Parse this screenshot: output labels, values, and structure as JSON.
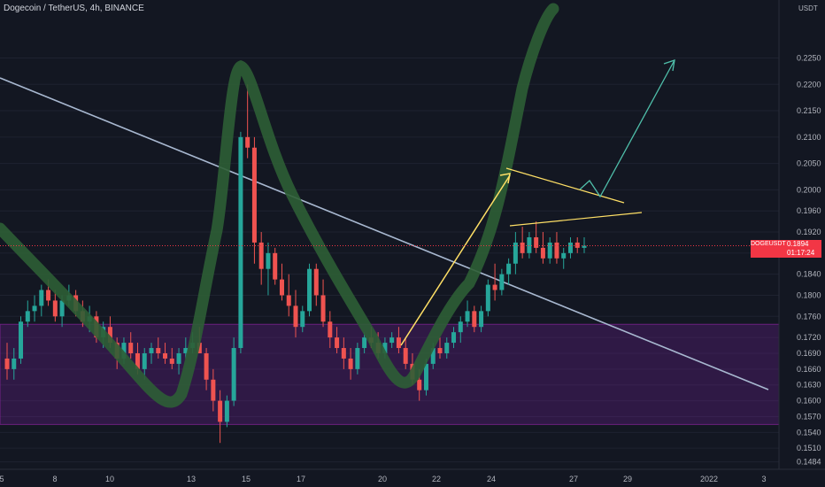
{
  "window": {
    "title": "Dogecoin / TetherUS, 4h, BINANCE",
    "currency_label": "USDT",
    "symbol_tag": "DOGEUSDT",
    "last_price": "0.1894",
    "countdown": "01:17:24"
  },
  "colors": {
    "background": "#131722",
    "up": "#26a69a",
    "down": "#ef5350",
    "zone": "#7b1fa2",
    "trend_green": "#2e5e35",
    "diag_line": "#a8b8d0",
    "yellow": "#ffe066",
    "teal_arrow": "#4fbfaa",
    "price_tag": "#f23645"
  },
  "chart_data": {
    "type": "candlestick",
    "title": "Dogecoin / TetherUS, 4h, BINANCE",
    "ylim": [
      0.147,
      0.236
    ],
    "y_ticks": [
      "0.2250",
      "0.2200",
      "0.2150",
      "0.2100",
      "0.2050",
      "0.2000",
      "0.1960",
      "0.1920",
      "0.1880",
      "0.1840",
      "0.1800",
      "0.1760",
      "0.1720",
      "0.1690",
      "0.1660",
      "0.1630",
      "0.1600",
      "0.1570",
      "0.1540",
      "0.1510",
      "0.1484"
    ],
    "x_ticks": [
      "5",
      "8",
      "10",
      "13",
      "15",
      "17",
      "20",
      "22",
      "24",
      "27",
      "29",
      "2022",
      "3"
    ],
    "current_price": 0.1894,
    "support_zone": [
      0.1555,
      0.1745
    ],
    "candles": [
      [
        0.168,
        0.171,
        0.164,
        0.166
      ],
      [
        0.166,
        0.17,
        0.164,
        0.168
      ],
      [
        0.168,
        0.176,
        0.167,
        0.175
      ],
      [
        0.175,
        0.179,
        0.174,
        0.177
      ],
      [
        0.177,
        0.18,
        0.175,
        0.178
      ],
      [
        0.178,
        0.182,
        0.176,
        0.181
      ],
      [
        0.181,
        0.183,
        0.178,
        0.179
      ],
      [
        0.179,
        0.181,
        0.175,
        0.176
      ],
      [
        0.176,
        0.18,
        0.174,
        0.179
      ],
      [
        0.179,
        0.182,
        0.178,
        0.18
      ],
      [
        0.18,
        0.181,
        0.176,
        0.177
      ],
      [
        0.177,
        0.179,
        0.174,
        0.175
      ],
      [
        0.175,
        0.178,
        0.173,
        0.176
      ],
      [
        0.176,
        0.177,
        0.171,
        0.172
      ],
      [
        0.172,
        0.175,
        0.17,
        0.174
      ],
      [
        0.174,
        0.176,
        0.17,
        0.171
      ],
      [
        0.171,
        0.172,
        0.166,
        0.168
      ],
      [
        0.168,
        0.172,
        0.167,
        0.171
      ],
      [
        0.171,
        0.173,
        0.168,
        0.169
      ],
      [
        0.169,
        0.171,
        0.165,
        0.166
      ],
      [
        0.166,
        0.17,
        0.164,
        0.169
      ],
      [
        0.169,
        0.171,
        0.167,
        0.17
      ],
      [
        0.17,
        0.172,
        0.168,
        0.169
      ],
      [
        0.169,
        0.171,
        0.167,
        0.168
      ],
      [
        0.168,
        0.17,
        0.166,
        0.167
      ],
      [
        0.167,
        0.17,
        0.165,
        0.169
      ],
      [
        0.169,
        0.172,
        0.168,
        0.17
      ],
      [
        0.17,
        0.173,
        0.169,
        0.171
      ],
      [
        0.171,
        0.174,
        0.169,
        0.169
      ],
      [
        0.169,
        0.17,
        0.162,
        0.164
      ],
      [
        0.164,
        0.166,
        0.158,
        0.16
      ],
      [
        0.16,
        0.162,
        0.152,
        0.156
      ],
      [
        0.156,
        0.161,
        0.155,
        0.16
      ],
      [
        0.16,
        0.172,
        0.159,
        0.17
      ],
      [
        0.17,
        0.211,
        0.169,
        0.21
      ],
      [
        0.21,
        0.22,
        0.206,
        0.208
      ],
      [
        0.208,
        0.21,
        0.186,
        0.19
      ],
      [
        0.19,
        0.192,
        0.182,
        0.185
      ],
      [
        0.185,
        0.19,
        0.18,
        0.188
      ],
      [
        0.188,
        0.189,
        0.182,
        0.183
      ],
      [
        0.183,
        0.186,
        0.179,
        0.18
      ],
      [
        0.18,
        0.184,
        0.176,
        0.178
      ],
      [
        0.178,
        0.181,
        0.172,
        0.174
      ],
      [
        0.174,
        0.178,
        0.173,
        0.177
      ],
      [
        0.177,
        0.186,
        0.176,
        0.185
      ],
      [
        0.185,
        0.186,
        0.178,
        0.18
      ],
      [
        0.18,
        0.183,
        0.174,
        0.175
      ],
      [
        0.175,
        0.177,
        0.17,
        0.172
      ],
      [
        0.172,
        0.174,
        0.169,
        0.17
      ],
      [
        0.17,
        0.172,
        0.166,
        0.168
      ],
      [
        0.168,
        0.17,
        0.164,
        0.166
      ],
      [
        0.166,
        0.171,
        0.165,
        0.17
      ],
      [
        0.17,
        0.173,
        0.169,
        0.172
      ],
      [
        0.172,
        0.174,
        0.17,
        0.171
      ],
      [
        0.171,
        0.173,
        0.168,
        0.169
      ],
      [
        0.169,
        0.172,
        0.168,
        0.171
      ],
      [
        0.171,
        0.173,
        0.17,
        0.172
      ],
      [
        0.172,
        0.174,
        0.169,
        0.17
      ],
      [
        0.17,
        0.172,
        0.166,
        0.167
      ],
      [
        0.167,
        0.169,
        0.163,
        0.164
      ],
      [
        0.164,
        0.166,
        0.16,
        0.162
      ],
      [
        0.162,
        0.168,
        0.161,
        0.167
      ],
      [
        0.167,
        0.171,
        0.166,
        0.17
      ],
      [
        0.17,
        0.172,
        0.168,
        0.169
      ],
      [
        0.169,
        0.172,
        0.168,
        0.171
      ],
      [
        0.171,
        0.174,
        0.17,
        0.173
      ],
      [
        0.173,
        0.176,
        0.171,
        0.175
      ],
      [
        0.175,
        0.179,
        0.174,
        0.177
      ],
      [
        0.177,
        0.178,
        0.173,
        0.174
      ],
      [
        0.174,
        0.178,
        0.173,
        0.177
      ],
      [
        0.177,
        0.183,
        0.176,
        0.182
      ],
      [
        0.182,
        0.186,
        0.179,
        0.181
      ],
      [
        0.181,
        0.185,
        0.18,
        0.184
      ],
      [
        0.184,
        0.187,
        0.182,
        0.186
      ],
      [
        0.186,
        0.192,
        0.184,
        0.19
      ],
      [
        0.19,
        0.193,
        0.187,
        0.188
      ],
      [
        0.188,
        0.192,
        0.187,
        0.191
      ],
      [
        0.191,
        0.194,
        0.188,
        0.189
      ],
      [
        0.189,
        0.192,
        0.186,
        0.187
      ],
      [
        0.187,
        0.191,
        0.186,
        0.19
      ],
      [
        0.19,
        0.192,
        0.186,
        0.187
      ],
      [
        0.187,
        0.189,
        0.185,
        0.188
      ],
      [
        0.188,
        0.191,
        0.187,
        0.19
      ],
      [
        0.19,
        0.191,
        0.188,
        0.189
      ],
      [
        0.189,
        0.191,
        0.188,
        0.1894
      ]
    ]
  }
}
